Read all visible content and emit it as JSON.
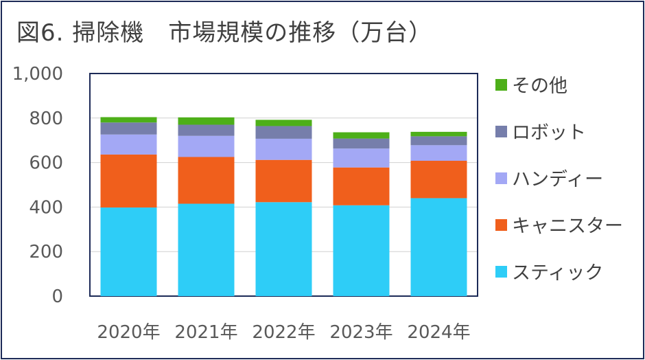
{
  "title": "図6. 掃除機　市場規模の推移（万台）",
  "chart_data": {
    "type": "bar",
    "stacked": true,
    "categories": [
      "2020年",
      "2021年",
      "2022年",
      "2023年",
      "2024年"
    ],
    "ylim": [
      0,
      1000
    ],
    "yticks": [
      "0",
      "200",
      "400",
      "600",
      "800",
      "1,000"
    ],
    "ytick_values": [
      0,
      200,
      400,
      600,
      800,
      1000
    ],
    "grid": true,
    "legend_position": "right",
    "series": [
      {
        "name": "スティック",
        "color": "#2ecdf7",
        "values": [
          398,
          415,
          422,
          408,
          440
        ]
      },
      {
        "name": "キャニスター",
        "color": "#f05f1c",
        "values": [
          238,
          210,
          190,
          170,
          168
        ]
      },
      {
        "name": "ハンディー",
        "color": "#a3a8f5",
        "values": [
          90,
          95,
          95,
          85,
          70
        ]
      },
      {
        "name": "ロボット",
        "color": "#767eab",
        "values": [
          54,
          50,
          57,
          45,
          40
        ]
      },
      {
        "name": "その他",
        "color": "#4daf19",
        "values": [
          24,
          33,
          28,
          28,
          20
        ]
      }
    ]
  }
}
